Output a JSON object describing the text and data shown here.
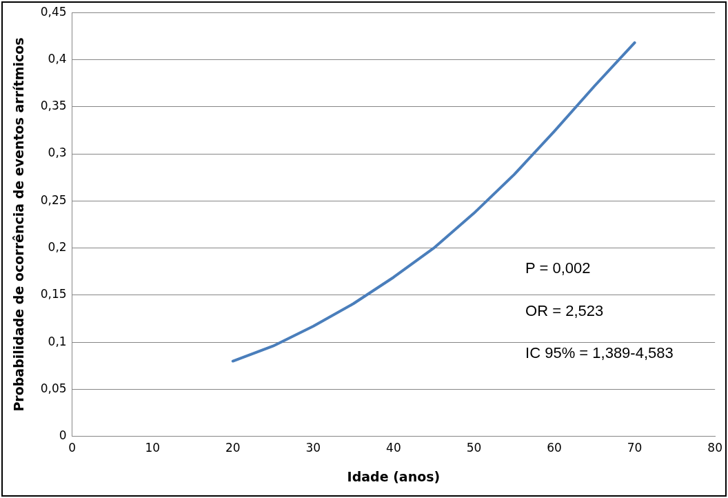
{
  "chart_data": {
    "type": "line",
    "xlabel": "Idade (anos)",
    "ylabel": "Probabilidade de ocorrência de eventos arrítmicos",
    "x": [
      20,
      25,
      30,
      35,
      40,
      45,
      50,
      55,
      60,
      65,
      70
    ],
    "series": [
      {
        "color": "#4a7ebb",
        "values": [
          0.08,
          0.096,
          0.117,
          0.141,
          0.169,
          0.2,
          0.237,
          0.278,
          0.324,
          0.372,
          0.418
        ]
      }
    ],
    "xlim": [
      0,
      80
    ],
    "xticks": [
      0,
      10,
      20,
      30,
      40,
      50,
      60,
      70,
      80
    ],
    "ylim": [
      0,
      0.45
    ],
    "yticks": [
      0,
      {
        "value": 0.05,
        "label": "0,05"
      },
      {
        "value": 0.1,
        "label": "0,1"
      },
      {
        "value": 0.15,
        "label": "0,15"
      },
      {
        "value": 0.2,
        "label": "0,2"
      },
      {
        "value": 0.25,
        "label": "0,25"
      },
      {
        "value": 0.3,
        "label": "0,3"
      },
      {
        "value": 0.35,
        "label": "0,35"
      },
      {
        "value": 0.4,
        "label": "0,4"
      },
      {
        "value": 0.45,
        "label": "0,45"
      }
    ],
    "grid": "y",
    "legend": false,
    "marker": "none",
    "line_style": "solid",
    "annotations": [
      "P = 0,002",
      "OR = 2,523",
      "IC 95% = 1,389-4,583"
    ]
  }
}
